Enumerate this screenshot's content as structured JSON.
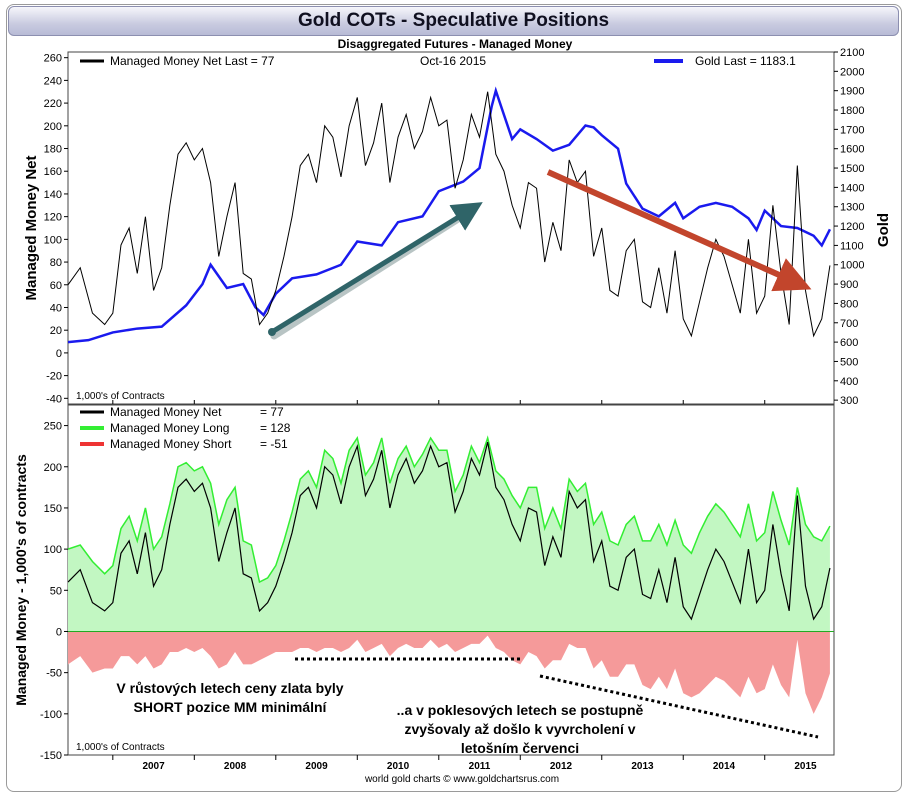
{
  "header": {
    "title": "Gold COTs - Speculative Positions",
    "subtitle": "Disaggregated Futures - Managed Money"
  },
  "top_panel": {
    "legend_left": "Managed Money Net   Last = 77",
    "date_label": "Oct-16  2015",
    "legend_right": "Gold Last = 1183.1",
    "left_axis_label": "Managed Money Net",
    "right_axis_label": "Gold",
    "units_note": "1,000's of Contracts"
  },
  "bottom_panel": {
    "axis_label": "Managed Money - 1,000's of contracts",
    "units_note": "1,000's of Contracts",
    "legend": [
      {
        "name": "Managed Money Net",
        "value": "= 77",
        "color": "#000000"
      },
      {
        "name": "Managed Money Long",
        "value": "= 128",
        "color": "#33ee33"
      },
      {
        "name": "Managed Money Short",
        "value": "= -51",
        "color": "#ee3333"
      }
    ]
  },
  "annotations": {
    "left_text_line1": "V růstových letech ceny zlata byly",
    "left_text_line2": "SHORT pozice MM minimální",
    "right_text_line1": "..a v poklesových letech se postupně",
    "right_text_line2": "zvyšovaly až došlo k vyvrcholení v",
    "right_text_line3": "letošním červenci"
  },
  "footer": {
    "credit": "world gold charts © www.goldchartsrus.com"
  },
  "colors": {
    "gold_line": "#1a1aee",
    "net_line": "#000000",
    "long_line": "#33ee33",
    "long_fill": "#c2f7c2",
    "short_fill": "#f59a9a",
    "green_arrow": "#2f6468",
    "red_arrow": "#c2452c"
  },
  "chart_data": [
    {
      "type": "line",
      "title": "Gold COTs - Speculative Positions",
      "subtitle": "Disaggregated Futures - Managed Money",
      "ylabel": "Managed Money Net",
      "y2label": "Gold",
      "ylim": [
        -45,
        265
      ],
      "y2lim": [
        280,
        2100
      ],
      "yticks": [
        -40,
        -20,
        0,
        20,
        40,
        60,
        80,
        100,
        120,
        140,
        160,
        180,
        200,
        220,
        240,
        260
      ],
      "y2ticks": [
        300,
        400,
        500,
        600,
        700,
        800,
        900,
        1000,
        1100,
        1200,
        1300,
        1400,
        1500,
        1600,
        1700,
        1800,
        1900,
        2000,
        2100
      ],
      "xlim": [
        2006.45,
        2015.85
      ],
      "series": [
        {
          "name": "Managed Money Net",
          "axis": "left",
          "x": [
            2006.45,
            2006.6,
            2006.75,
            2006.9,
            2007.0,
            2007.1,
            2007.2,
            2007.3,
            2007.4,
            2007.5,
            2007.6,
            2007.7,
            2007.8,
            2007.9,
            2008.0,
            2008.1,
            2008.2,
            2008.3,
            2008.4,
            2008.5,
            2008.6,
            2008.7,
            2008.8,
            2008.9,
            2009.0,
            2009.1,
            2009.2,
            2009.3,
            2009.4,
            2009.5,
            2009.6,
            2009.7,
            2009.8,
            2009.9,
            2010.0,
            2010.1,
            2010.2,
            2010.3,
            2010.4,
            2010.5,
            2010.6,
            2010.7,
            2010.8,
            2010.9,
            2011.0,
            2011.1,
            2011.2,
            2011.3,
            2011.4,
            2011.5,
            2011.6,
            2011.7,
            2011.8,
            2011.9,
            2012.0,
            2012.1,
            2012.2,
            2012.3,
            2012.4,
            2012.5,
            2012.6,
            2012.7,
            2012.8,
            2012.9,
            2013.0,
            2013.1,
            2013.2,
            2013.3,
            2013.4,
            2013.5,
            2013.6,
            2013.7,
            2013.8,
            2013.9,
            2014.0,
            2014.1,
            2014.2,
            2014.3,
            2014.4,
            2014.5,
            2014.6,
            2014.7,
            2014.8,
            2014.9,
            2015.0,
            2015.1,
            2015.2,
            2015.3,
            2015.4,
            2015.5,
            2015.6,
            2015.7,
            2015.8
          ],
          "values": [
            60,
            75,
            35,
            25,
            35,
            95,
            110,
            70,
            120,
            55,
            75,
            130,
            175,
            185,
            170,
            180,
            150,
            85,
            120,
            150,
            70,
            65,
            25,
            35,
            55,
            85,
            120,
            165,
            175,
            150,
            200,
            190,
            155,
            200,
            225,
            165,
            185,
            220,
            150,
            190,
            210,
            180,
            195,
            225,
            200,
            205,
            145,
            170,
            210,
            190,
            230,
            175,
            160,
            130,
            110,
            150,
            145,
            80,
            115,
            90,
            170,
            150,
            160,
            85,
            110,
            55,
            50,
            90,
            100,
            45,
            40,
            75,
            35,
            90,
            30,
            15,
            45,
            75,
            100,
            85,
            60,
            35,
            100,
            35,
            50,
            130,
            70,
            25,
            165,
            55,
            15,
            30,
            77
          ]
        },
        {
          "name": "Gold Last",
          "axis": "right",
          "x": [
            2006.45,
            2006.7,
            2007.0,
            2007.3,
            2007.6,
            2007.9,
            2008.1,
            2008.2,
            2008.4,
            2008.6,
            2008.75,
            2008.85,
            2009.0,
            2009.2,
            2009.5,
            2009.8,
            2010.0,
            2010.3,
            2010.5,
            2010.8,
            2011.0,
            2011.3,
            2011.5,
            2011.65,
            2011.7,
            2011.9,
            2012.0,
            2012.2,
            2012.4,
            2012.6,
            2012.8,
            2012.9,
            2013.0,
            2013.2,
            2013.3,
            2013.5,
            2013.7,
            2013.9,
            2014.0,
            2014.2,
            2014.4,
            2014.6,
            2014.8,
            2014.9,
            2015.0,
            2015.2,
            2015.4,
            2015.6,
            2015.7,
            2015.8
          ],
          "values": [
            600,
            610,
            650,
            670,
            680,
            790,
            900,
            1000,
            880,
            900,
            780,
            740,
            850,
            930,
            950,
            1000,
            1120,
            1100,
            1220,
            1250,
            1380,
            1430,
            1500,
            1820,
            1900,
            1650,
            1700,
            1650,
            1590,
            1620,
            1720,
            1710,
            1670,
            1600,
            1420,
            1290,
            1250,
            1320,
            1240,
            1300,
            1320,
            1300,
            1240,
            1180,
            1280,
            1200,
            1190,
            1150,
            1100,
            1183.1
          ]
        }
      ]
    },
    {
      "type": "area",
      "ylabel": "Managed Money - 1,000's of contracts",
      "ylim": [
        -150,
        275
      ],
      "yticks": [
        -150,
        -100,
        -50,
        0,
        50,
        100,
        150,
        200,
        250
      ],
      "xlim": [
        2006.45,
        2015.85
      ],
      "xticks": [
        "2007",
        "2008",
        "2009",
        "2010",
        "2011",
        "2012",
        "2013",
        "2014",
        "2015"
      ],
      "x": [
        2006.45,
        2006.6,
        2006.75,
        2006.9,
        2007.0,
        2007.1,
        2007.2,
        2007.3,
        2007.4,
        2007.5,
        2007.6,
        2007.7,
        2007.8,
        2007.9,
        2008.0,
        2008.1,
        2008.2,
        2008.3,
        2008.4,
        2008.5,
        2008.6,
        2008.7,
        2008.8,
        2008.9,
        2009.0,
        2009.1,
        2009.2,
        2009.3,
        2009.4,
        2009.5,
        2009.6,
        2009.7,
        2009.8,
        2009.9,
        2010.0,
        2010.1,
        2010.2,
        2010.3,
        2010.4,
        2010.5,
        2010.6,
        2010.7,
        2010.8,
        2010.9,
        2011.0,
        2011.1,
        2011.2,
        2011.3,
        2011.4,
        2011.5,
        2011.6,
        2011.7,
        2011.8,
        2011.9,
        2012.0,
        2012.1,
        2012.2,
        2012.3,
        2012.4,
        2012.5,
        2012.6,
        2012.7,
        2012.8,
        2012.9,
        2013.0,
        2013.1,
        2013.2,
        2013.3,
        2013.4,
        2013.5,
        2013.6,
        2013.7,
        2013.8,
        2013.9,
        2014.0,
        2014.1,
        2014.2,
        2014.3,
        2014.4,
        2014.5,
        2014.6,
        2014.7,
        2014.8,
        2014.9,
        2015.0,
        2015.1,
        2015.2,
        2015.3,
        2015.4,
        2015.5,
        2015.6,
        2015.7,
        2015.8
      ],
      "series": [
        {
          "name": "Managed Money Long",
          "values": [
            100,
            105,
            85,
            70,
            80,
            125,
            140,
            110,
            150,
            100,
            115,
            155,
            200,
            205,
            195,
            200,
            180,
            130,
            160,
            175,
            110,
            105,
            60,
            65,
            80,
            110,
            145,
            185,
            195,
            175,
            220,
            210,
            180,
            220,
            235,
            190,
            205,
            235,
            180,
            210,
            225,
            200,
            215,
            235,
            220,
            220,
            170,
            190,
            225,
            205,
            235,
            195,
            185,
            165,
            150,
            175,
            175,
            125,
            150,
            125,
            185,
            170,
            180,
            130,
            145,
            110,
            105,
            130,
            140,
            110,
            110,
            130,
            105,
            135,
            105,
            95,
            120,
            140,
            155,
            145,
            130,
            115,
            155,
            110,
            120,
            170,
            135,
            105,
            175,
            130,
            115,
            110,
            128
          ]
        },
        {
          "name": "Managed Money Net",
          "values": [
            60,
            75,
            35,
            25,
            35,
            95,
            110,
            70,
            120,
            55,
            75,
            130,
            175,
            185,
            170,
            180,
            150,
            85,
            120,
            150,
            70,
            65,
            25,
            35,
            55,
            85,
            120,
            165,
            175,
            150,
            200,
            190,
            155,
            200,
            225,
            165,
            185,
            220,
            150,
            190,
            210,
            180,
            195,
            225,
            200,
            205,
            145,
            170,
            210,
            190,
            230,
            175,
            160,
            130,
            110,
            150,
            145,
            80,
            115,
            90,
            170,
            150,
            160,
            85,
            110,
            55,
            50,
            90,
            100,
            45,
            40,
            75,
            35,
            90,
            30,
            15,
            45,
            75,
            100,
            85,
            60,
            35,
            100,
            35,
            50,
            130,
            70,
            25,
            165,
            55,
            15,
            30,
            77
          ]
        },
        {
          "name": "Managed Money Short",
          "values": [
            -40,
            -30,
            -50,
            -45,
            -45,
            -30,
            -30,
            -40,
            -30,
            -45,
            -40,
            -25,
            -25,
            -20,
            -25,
            -20,
            -30,
            -45,
            -40,
            -25,
            -40,
            -40,
            -35,
            -30,
            -25,
            -25,
            -25,
            -20,
            -20,
            -25,
            -20,
            -20,
            -25,
            -20,
            -10,
            -25,
            -20,
            -15,
            -30,
            -20,
            -15,
            -20,
            -20,
            -10,
            -20,
            -15,
            -25,
            -20,
            -15,
            -15,
            -5,
            -20,
            -25,
            -35,
            -40,
            -25,
            -30,
            -45,
            -35,
            -35,
            -15,
            -20,
            -20,
            -45,
            -35,
            -55,
            -55,
            -40,
            -40,
            -65,
            -70,
            -55,
            -70,
            -45,
            -75,
            -80,
            -75,
            -65,
            -55,
            -60,
            -70,
            -80,
            -55,
            -75,
            -70,
            -40,
            -65,
            -80,
            -10,
            -75,
            -100,
            -80,
            -51
          ]
        }
      ]
    }
  ]
}
